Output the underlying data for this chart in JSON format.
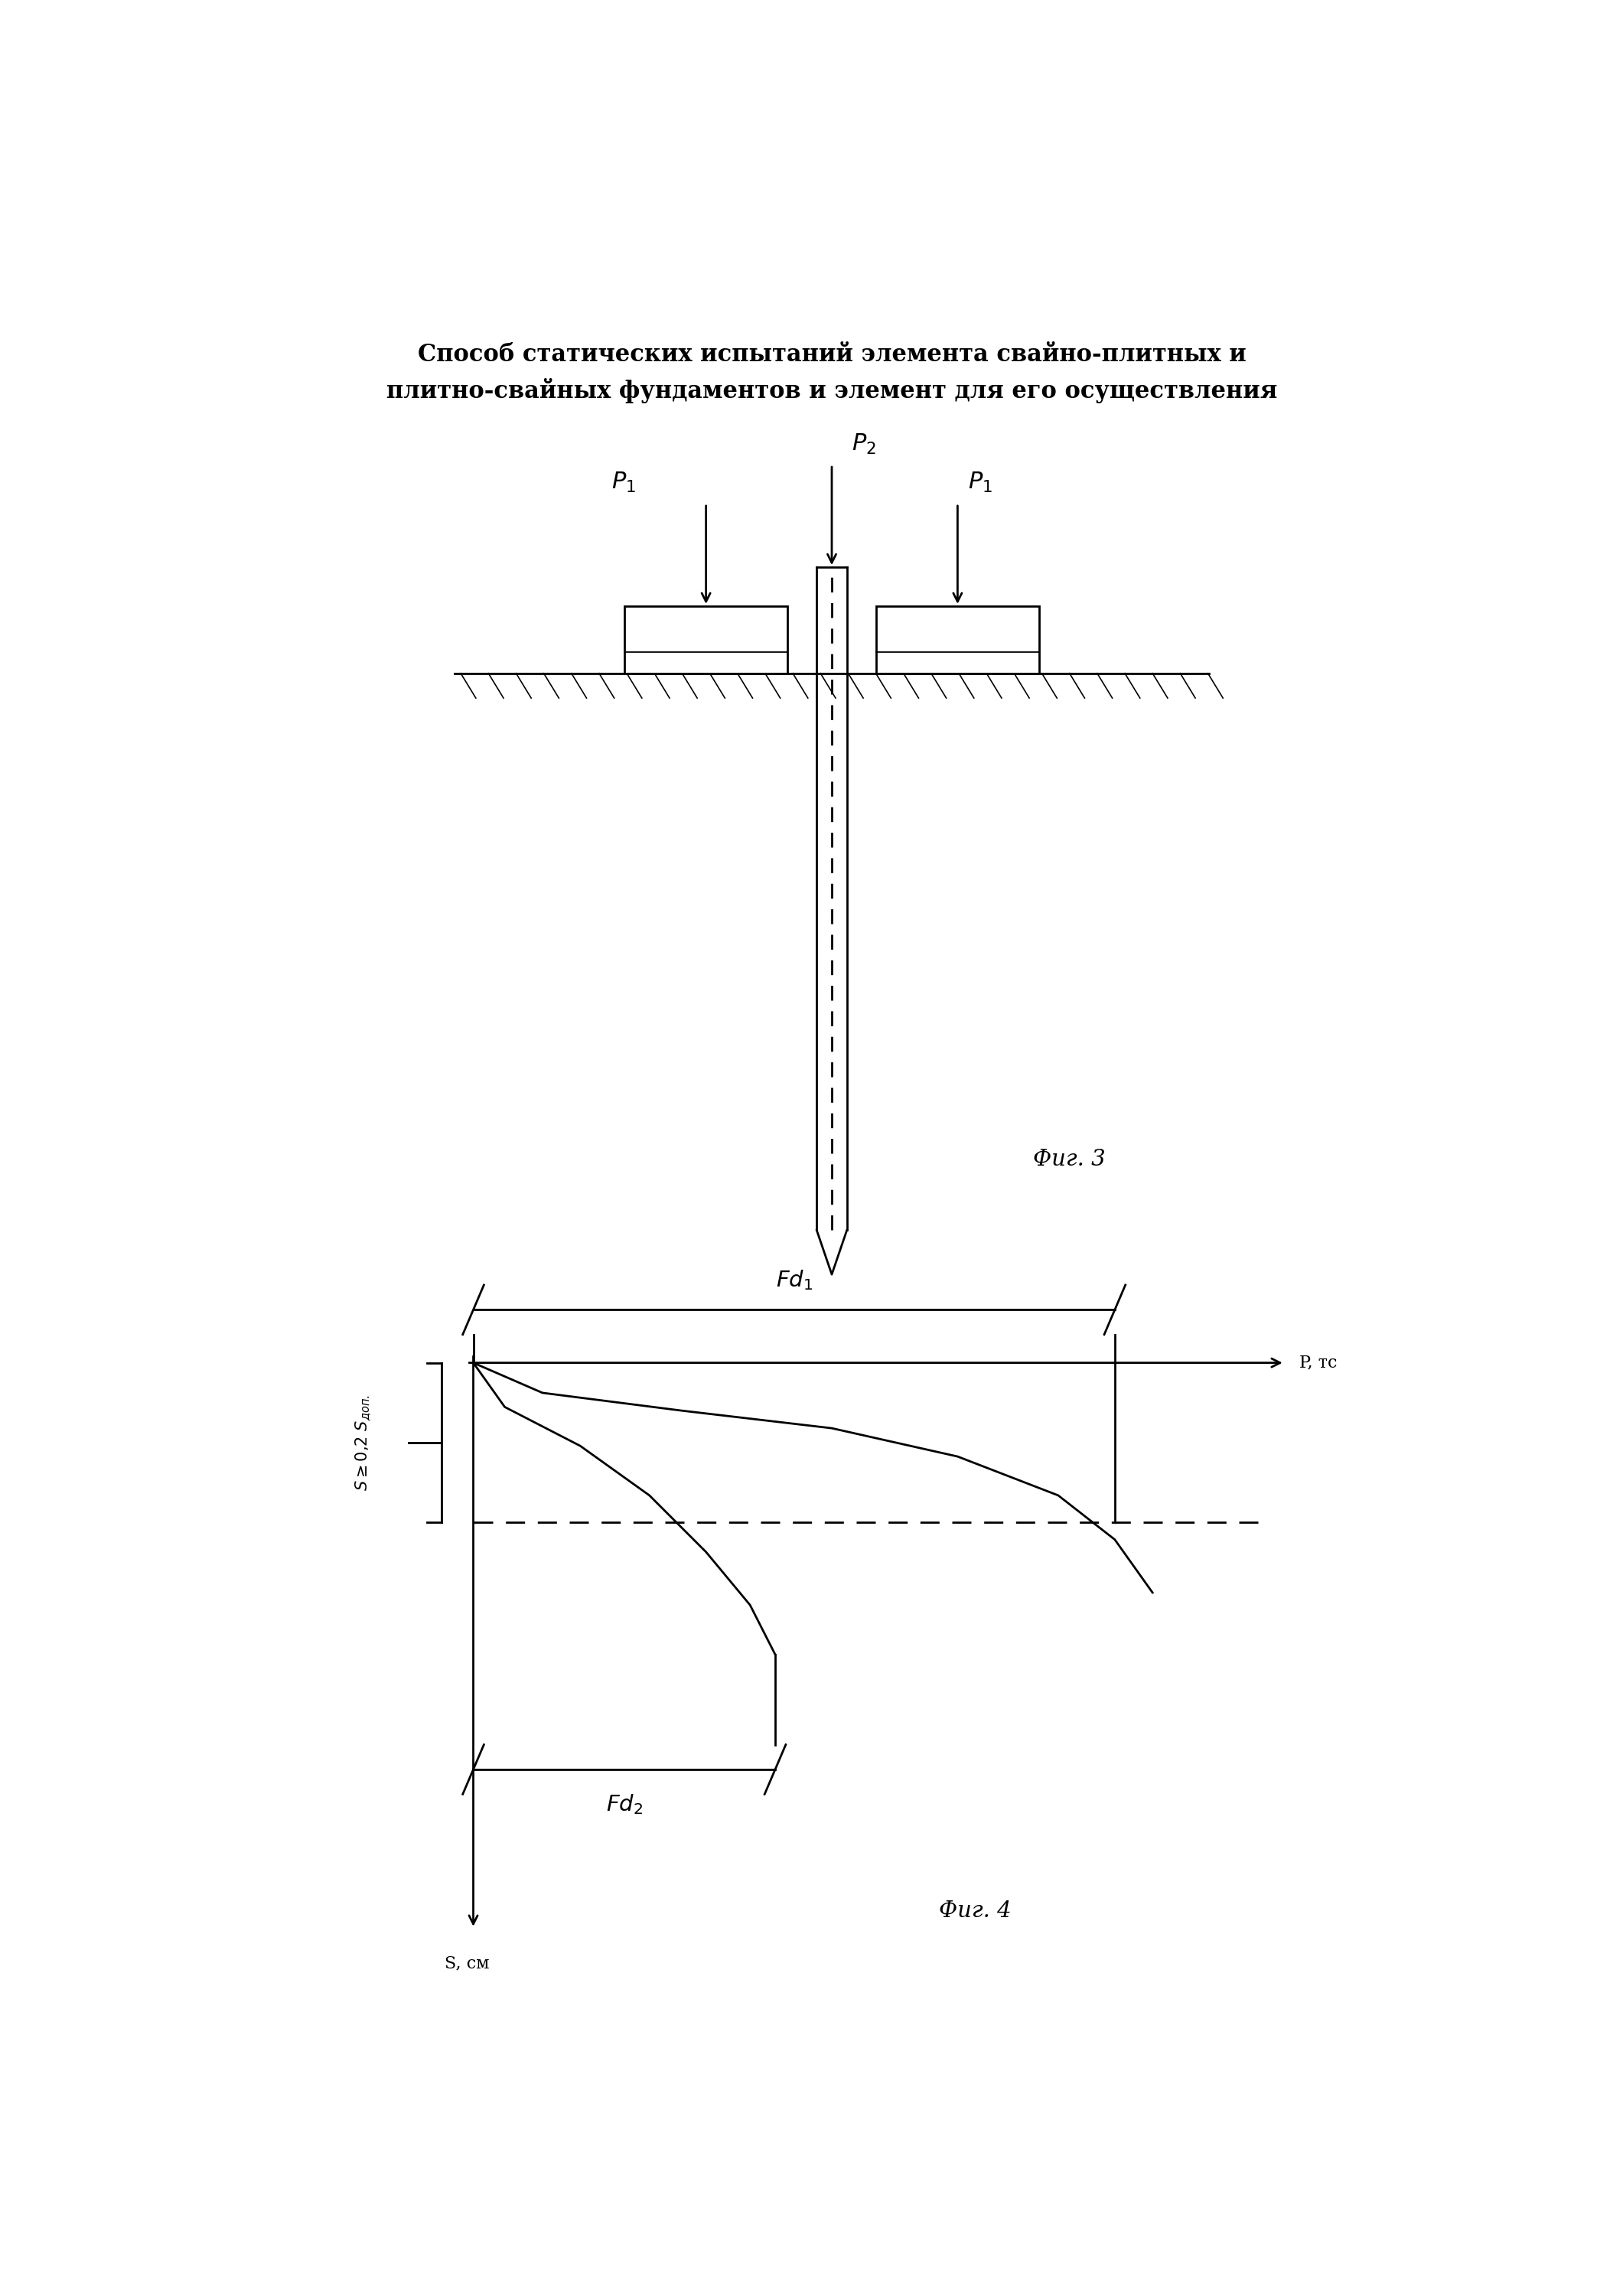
{
  "title_line1": "Способ статических испытаний элемента свайно-плитных и",
  "title_line2": "плитно-свайных фундаментов и элемент для его осуществления",
  "fig3_label": "Фиг. 3",
  "fig4_label": "Фиг. 4",
  "bg_color": "#ffffff",
  "line_color": "#000000",
  "title_fontsize": 22,
  "label_fontsize": 18,
  "annotation_fontsize": 16
}
